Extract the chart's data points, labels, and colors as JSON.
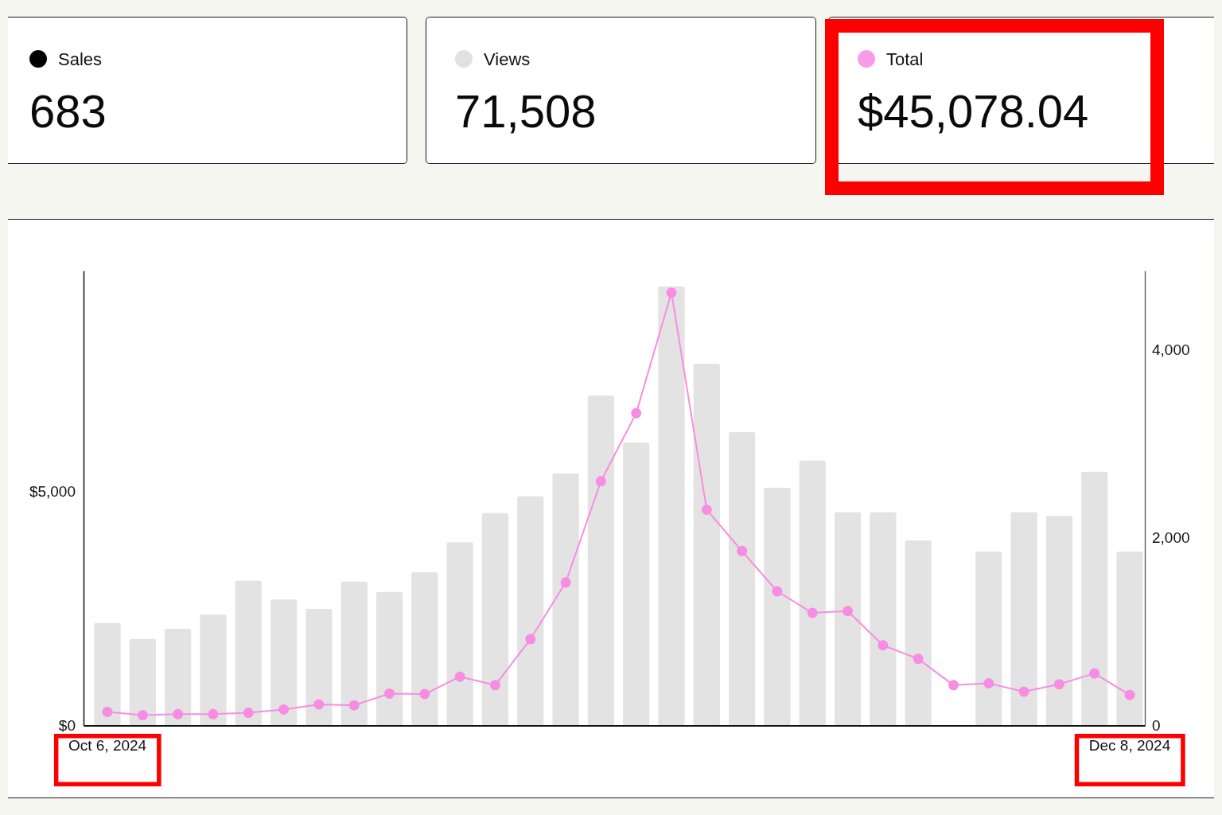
{
  "chart_data": [
    {
      "type": "other",
      "categories": [
        "Sales",
        "Views",
        "Total"
      ],
      "value_labels": [
        "683",
        "71,508",
        "$45,078.04"
      ],
      "colors": [
        "#000000",
        "#e1e1e1",
        "#f99ce8"
      ]
    },
    {
      "type": "bar",
      "categories": [
        "Oct 6, 2024",
        null,
        null,
        null,
        null,
        null,
        null,
        null,
        null,
        null,
        null,
        null,
        null,
        null,
        null,
        null,
        null,
        null,
        null,
        null,
        null,
        null,
        null,
        null,
        null,
        null,
        null,
        null,
        null,
        "Dec 8, 2024"
      ],
      "series": [
        {
          "type": "bar",
          "axis": "y2",
          "color": "#e3e3e3",
          "values": [
            1090,
            920,
            1030,
            1180,
            1540,
            1340,
            1240,
            1530,
            1420,
            1630,
            1950,
            2260,
            2440,
            2680,
            3510,
            3010,
            4670,
            3850,
            3120,
            2530,
            2820,
            2270,
            2270,
            1970,
            null,
            1850,
            2270,
            2230,
            2700,
            1850
          ]
        },
        {
          "type": "line",
          "axis": "y",
          "color": "#f78de2",
          "values": [
            290,
            220,
            240,
            240,
            270,
            340,
            450,
            430,
            680,
            670,
            1040,
            860,
            1840,
            3050,
            5210,
            6660,
            9230,
            4600,
            3720,
            2860,
            2400,
            2440,
            1710,
            1420,
            860,
            900,
            720,
            880,
            1110,
            650
          ]
        }
      ],
      "ylim": [
        0,
        9700
      ],
      "yticks": [
        {
          "value": 0,
          "label": "$0"
        },
        {
          "value": 5000,
          "label": "$5,000"
        }
      ],
      "y2lim": [
        0,
        4840
      ],
      "y2ticks": [
        0,
        {
          "value": 2000,
          "label": "2,000"
        },
        {
          "value": 4000,
          "label": "4,000"
        }
      ],
      "marker": "circle"
    }
  ]
}
